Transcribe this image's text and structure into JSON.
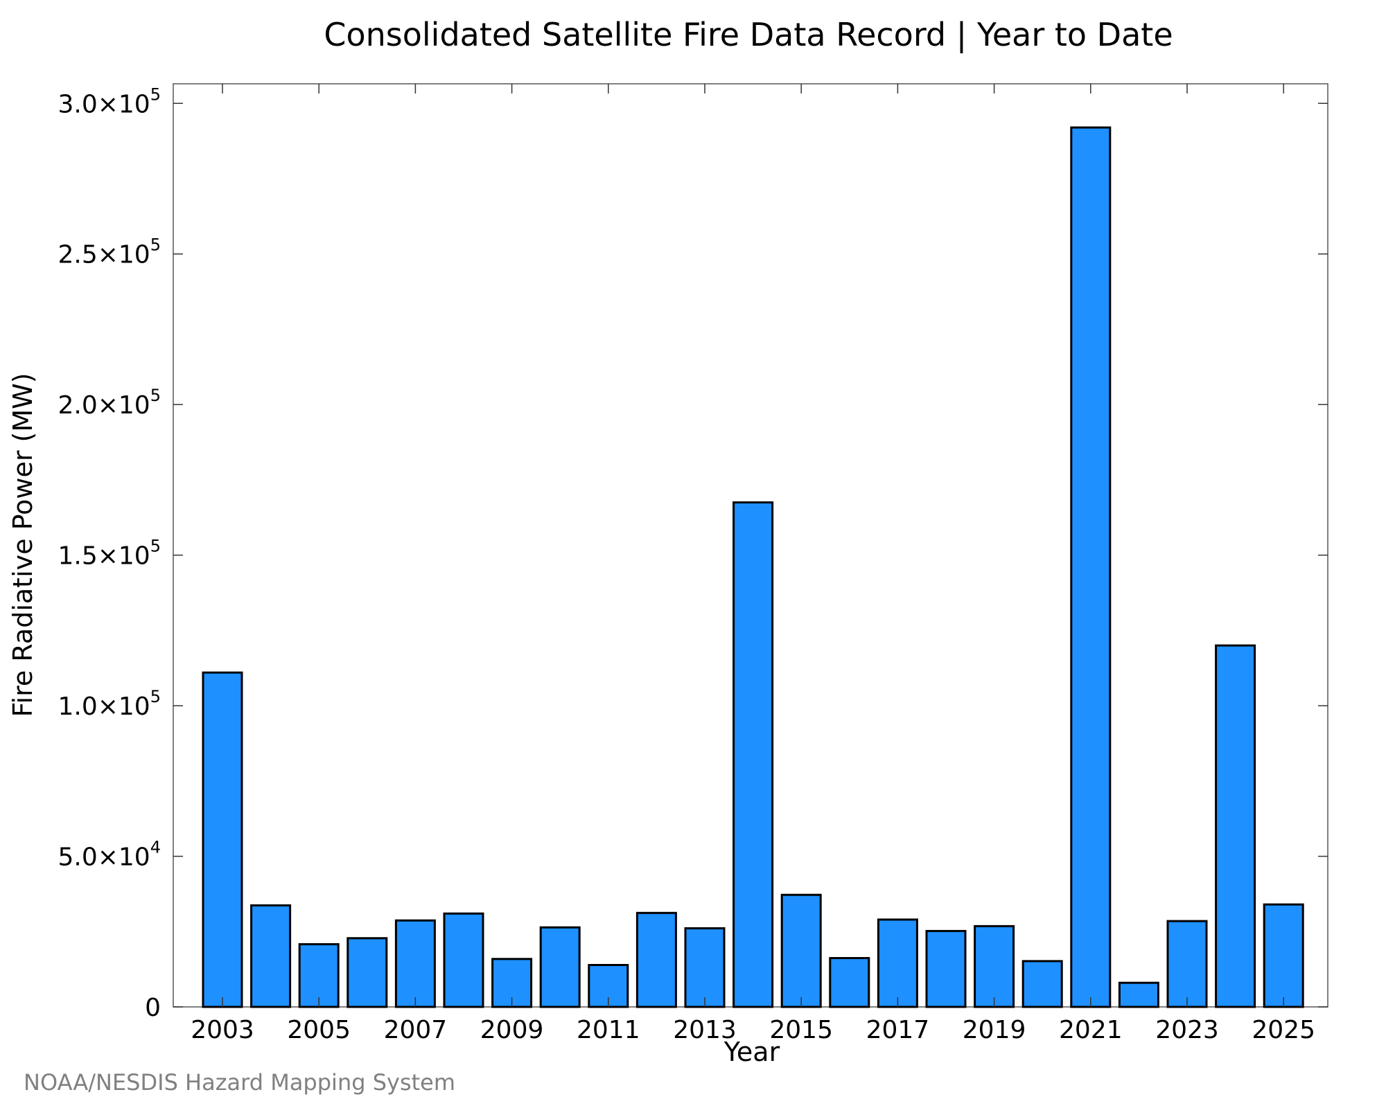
{
  "chart_data": {
    "type": "bar",
    "title": "Consolidated Satellite Fire Data Record | Year to Date",
    "xlabel": "Year",
    "ylabel": "Fire Radiative Power (MW)",
    "categories": [
      2003,
      2004,
      2005,
      2006,
      2007,
      2008,
      2009,
      2010,
      2011,
      2012,
      2013,
      2014,
      2015,
      2016,
      2017,
      2018,
      2019,
      2020,
      2021,
      2022,
      2023,
      2024,
      2025
    ],
    "values": [
      111000,
      33700,
      20800,
      22800,
      28700,
      31000,
      15900,
      26400,
      13900,
      31200,
      26100,
      167500,
      37200,
      16200,
      29000,
      25200,
      26800,
      15200,
      292000,
      8000,
      28500,
      120000,
      34000
    ],
    "ylim": [
      0,
      306500
    ],
    "x_tick_labels": [
      "2003",
      "2005",
      "2007",
      "2009",
      "2011",
      "2013",
      "2015",
      "2017",
      "2019",
      "2021",
      "2023",
      "2025"
    ],
    "y_ticks": [
      {
        "value": 0,
        "mantissa": "0",
        "exponent": ""
      },
      {
        "value": 50000,
        "mantissa": "5.0×10",
        "exponent": "4"
      },
      {
        "value": 100000,
        "mantissa": "1.0×10",
        "exponent": "5"
      },
      {
        "value": 150000,
        "mantissa": "1.5×10",
        "exponent": "5"
      },
      {
        "value": 200000,
        "mantissa": "2.0×10",
        "exponent": "5"
      },
      {
        "value": 250000,
        "mantissa": "2.5×10",
        "exponent": "5"
      },
      {
        "value": 300000,
        "mantissa": "3.0×10",
        "exponent": "5"
      }
    ],
    "bar_color": "#1e90ff",
    "grid": false,
    "legend": "none"
  },
  "credit": "NOAA/NESDIS Hazard Mapping System"
}
